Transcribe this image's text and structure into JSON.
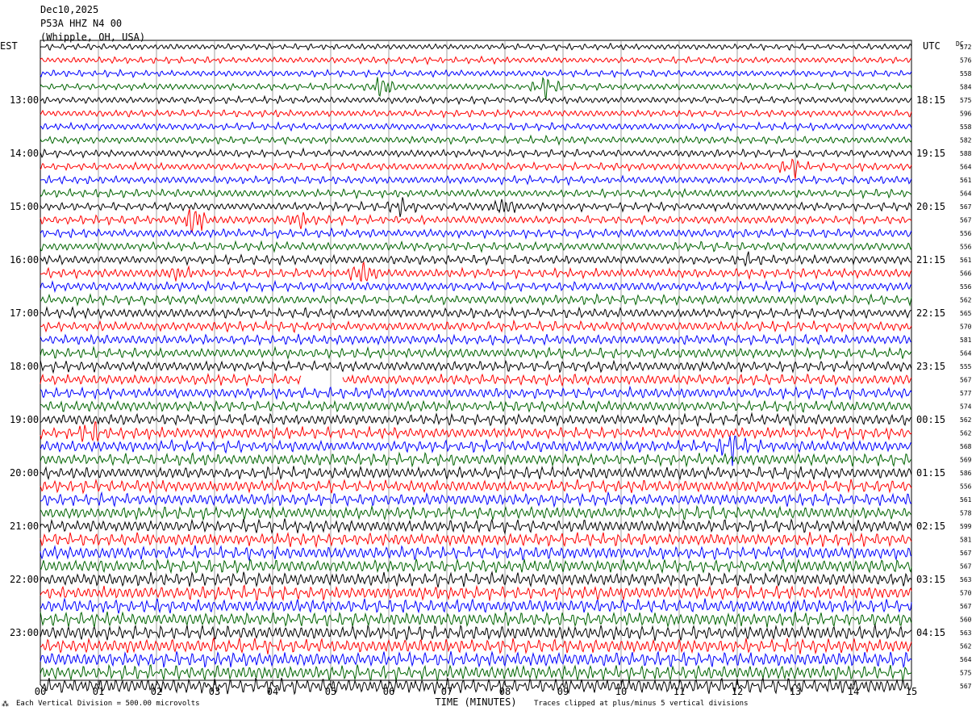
{
  "header": {
    "date": "Dec10,2025",
    "station": "P53A HHZ N4 00",
    "location": "(Whipple, OH, USA)"
  },
  "footer": {
    "vertical_division": "Each Vertical Division =  500.00 microvolts",
    "clip_note": "Traces clipped at plus/minus 5 vertical divisions"
  },
  "chart_data": {
    "type": "line",
    "title": "",
    "xlabel": "TIME (MINUTES)",
    "x_ticks": [
      "00",
      "01",
      "02",
      "03",
      "04",
      "05",
      "06",
      "07",
      "08",
      "09",
      "10",
      "11",
      "12",
      "13",
      "14",
      "15"
    ],
    "xlim": [
      0,
      15
    ],
    "left_axis_label": "EST",
    "right_axis_label": "UTC",
    "dc_label": "DC",
    "left_hour_labels": [
      "13:00",
      "14:00",
      "15:00",
      "16:00",
      "17:00",
      "18:00",
      "19:00",
      "20:00",
      "21:00",
      "22:00",
      "23:00"
    ],
    "right_hour_labels": [
      "18:15",
      "19:15",
      "20:15",
      "21:15",
      "22:15",
      "23:15",
      "00:15",
      "01:15",
      "02:15",
      "03:15",
      "04:15"
    ],
    "dc_values": [
      572,
      576,
      558,
      584,
      575,
      596,
      558,
      582,
      588,
      564,
      561,
      564,
      567,
      567,
      556,
      556,
      561,
      566,
      556,
      562,
      565,
      570,
      581,
      564,
      555,
      567,
      577,
      574,
      562,
      562,
      568,
      569,
      586,
      556,
      561,
      578,
      599,
      581,
      567,
      567,
      563,
      570,
      567,
      560,
      563,
      562,
      564,
      575,
      567
    ],
    "series_colors": [
      "#000000",
      "#ff0000",
      "#0000ff",
      "#006400"
    ],
    "events": [
      {
        "row": 3,
        "minute": 5.9,
        "amplitude": 3.0
      },
      {
        "row": 3,
        "minute": 8.7,
        "amplitude": 3.0
      },
      {
        "row": 9,
        "minute": 12.95,
        "amplitude": 2.2
      },
      {
        "row": 12,
        "minute": 6.2,
        "amplitude": 1.6
      },
      {
        "row": 12,
        "minute": 8.0,
        "amplitude": 1.3
      },
      {
        "row": 13,
        "minute": 2.65,
        "amplitude": 3.0
      },
      {
        "row": 13,
        "minute": 4.45,
        "amplitude": 1.6
      },
      {
        "row": 16,
        "minute": 12.2,
        "amplitude": 1.0
      },
      {
        "row": 17,
        "minute": 2.4,
        "amplitude": 1.0
      },
      {
        "row": 17,
        "minute": 5.55,
        "amplitude": 2.2
      },
      {
        "row": 29,
        "minute": 0.9,
        "amplitude": 1.8
      },
      {
        "row": 30,
        "minute": 11.9,
        "amplitude": 2.3
      }
    ],
    "gaps": [
      {
        "row": 25,
        "start_minute": 4.5,
        "end_minute": 5.2
      }
    ]
  }
}
